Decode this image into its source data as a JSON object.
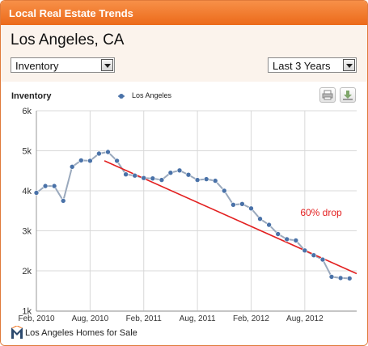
{
  "header": {
    "title": "Local Real Estate Trends"
  },
  "location": {
    "name": "Los Angeles, CA"
  },
  "controls": {
    "metric_select": {
      "value": "Inventory"
    },
    "range_select": {
      "value": "Last 3 Years"
    }
  },
  "toolbar": {
    "print_icon": "printer-icon",
    "download_icon": "download-icon"
  },
  "footer": {
    "link_text": "Los Angeles Homes for Sale",
    "logo_icon": "m-logo-icon"
  },
  "colors": {
    "header": "#f27d2c",
    "series": "#4a72a8",
    "trend": "#e32020",
    "annotation": "#e32020"
  },
  "chart_data": {
    "type": "line",
    "title": "Inventory",
    "xlabel": "",
    "ylabel": "",
    "ylim": [
      1000,
      6000
    ],
    "grid": true,
    "legend_placement": "top",
    "y_ticks": [
      "1k",
      "2k",
      "3k",
      "4k",
      "5k",
      "6k"
    ],
    "y_tick_values": [
      1000,
      2000,
      3000,
      4000,
      5000,
      6000
    ],
    "x_tick_labels": [
      "Feb, 2010",
      "Aug, 2010",
      "Feb, 2011",
      "Aug, 2011",
      "Feb, 2012",
      "Aug, 2012"
    ],
    "x_tick_month_index": [
      0,
      6,
      12,
      18,
      24,
      30
    ],
    "series": [
      {
        "name": "Los Angeles",
        "color": "#4a72a8",
        "x_month_index": [
          0,
          1,
          2,
          3,
          4,
          5,
          6,
          7,
          8,
          9,
          10,
          11,
          12,
          13,
          14,
          15,
          16,
          17,
          18,
          19,
          20,
          21,
          22,
          23,
          24,
          25,
          26,
          27,
          28,
          29,
          30,
          31,
          32,
          33,
          34,
          35
        ],
        "values": [
          3950,
          4120,
          4120,
          3750,
          4600,
          4760,
          4750,
          4930,
          4970,
          4750,
          4410,
          4380,
          4320,
          4310,
          4270,
          4450,
          4510,
          4400,
          4270,
          4290,
          4250,
          4000,
          3650,
          3670,
          3560,
          3300,
          3150,
          2920,
          2790,
          2760,
          2510,
          2390,
          2280,
          1850,
          1820,
          1810
        ]
      }
    ],
    "trend_line": {
      "start_month_index": 7.6,
      "start_value": 4750,
      "end_month_index": 35.8,
      "end_value": 1930
    },
    "annotations": [
      {
        "text": "60% drop",
        "month_index": 29.5,
        "value": 3450
      }
    ]
  }
}
